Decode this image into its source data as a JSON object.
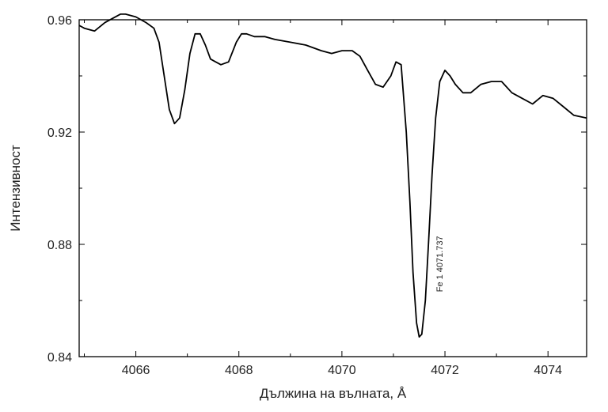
{
  "chart_data": {
    "type": "line",
    "title": "",
    "xlabel": "Дължина на вълната, Å",
    "ylabel": "Интензивност",
    "xlim": [
      4064.9,
      4074.75
    ],
    "ylim": [
      0.84,
      0.96
    ],
    "xticks": [
      4066,
      4068,
      4070,
      4072,
      4074
    ],
    "xtick_labels": [
      "4066",
      "4068",
      "4070",
      "4072",
      "4074"
    ],
    "yticks": [
      0.84,
      0.88,
      0.92,
      0.96
    ],
    "ytick_labels": [
      "0.84",
      "0.88",
      "0.92",
      "0.96"
    ],
    "grid": false,
    "legend": "none",
    "line_color": "#000000",
    "series": [
      {
        "x": [
          4064.9,
          4065.0,
          4065.2,
          4065.4,
          4065.6,
          4065.7,
          4065.8,
          4066.0,
          4066.2,
          4066.35,
          4066.45,
          4066.55,
          4066.65,
          4066.75,
          4066.85,
          4066.95,
          4067.05,
          4067.15,
          4067.25,
          4067.35,
          4067.45,
          4067.55,
          4067.65,
          4067.8,
          4067.95,
          4068.05,
          4068.15,
          4068.3,
          4068.5,
          4068.7,
          4069.0,
          4069.3,
          4069.6,
          4069.8,
          4070.0,
          4070.2,
          4070.35,
          4070.5,
          4070.65,
          4070.8,
          4070.95,
          4071.05,
          4071.15,
          4071.25,
          4071.32,
          4071.38,
          4071.45,
          4071.5,
          4071.55,
          4071.62,
          4071.68,
          4071.75,
          4071.82,
          4071.9,
          4072.0,
          4072.1,
          4072.2,
          4072.35,
          4072.5,
          4072.7,
          4072.9,
          4073.1,
          4073.3,
          4073.5,
          4073.7,
          4073.9,
          4074.1,
          4074.3,
          4074.5,
          4074.75
        ],
        "y": [
          0.958,
          0.957,
          0.956,
          0.959,
          0.961,
          0.962,
          0.962,
          0.961,
          0.959,
          0.957,
          0.952,
          0.94,
          0.928,
          0.923,
          0.925,
          0.935,
          0.948,
          0.955,
          0.955,
          0.951,
          0.946,
          0.945,
          0.944,
          0.945,
          0.952,
          0.955,
          0.955,
          0.954,
          0.954,
          0.953,
          0.952,
          0.951,
          0.949,
          0.948,
          0.949,
          0.949,
          0.947,
          0.942,
          0.937,
          0.936,
          0.94,
          0.945,
          0.944,
          0.92,
          0.895,
          0.87,
          0.852,
          0.847,
          0.848,
          0.86,
          0.88,
          0.905,
          0.925,
          0.938,
          0.942,
          0.94,
          0.937,
          0.934,
          0.934,
          0.937,
          0.938,
          0.938,
          0.934,
          0.932,
          0.93,
          0.933,
          0.932,
          0.929,
          0.926,
          0.925
        ]
      }
    ],
    "annotation": {
      "text": "Fe 1 4071.737",
      "x": 4071.95,
      "y": 0.873,
      "rotation": -90
    }
  }
}
